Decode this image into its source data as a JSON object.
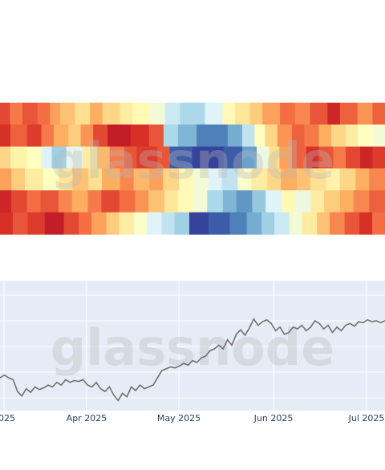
{
  "watermark": "glassnode",
  "chart_data": [
    {
      "type": "heatmap",
      "rows": 6,
      "colorscale": [
        "#313695",
        "#4575b4",
        "#74add1",
        "#abd9e9",
        "#e0f3f8",
        "#ffffbf",
        "#fee090",
        "#fdae61",
        "#f46d43",
        "#d73027",
        "#a50026"
      ],
      "segments": [
        [
          [
            0.86,
            8
          ],
          [
            0.78,
            10
          ],
          [
            0.84,
            12
          ],
          [
            0.8,
            10
          ],
          [
            0.72,
            8
          ],
          [
            0.66,
            12
          ],
          [
            0.6,
            12
          ],
          [
            0.7,
            10
          ],
          [
            0.62,
            14
          ],
          [
            0.56,
            10
          ],
          [
            0.52,
            14
          ],
          [
            0.46,
            12
          ],
          [
            0.36,
            12
          ],
          [
            0.3,
            20
          ],
          [
            0.4,
            14
          ],
          [
            0.52,
            10
          ],
          [
            0.58,
            12
          ],
          [
            0.64,
            10
          ],
          [
            0.72,
            14
          ],
          [
            0.8,
            12
          ],
          [
            0.76,
            12
          ],
          [
            0.84,
            14
          ],
          [
            0.92,
            10
          ],
          [
            0.82,
            14
          ],
          [
            0.74,
            12
          ],
          [
            0.82,
            10
          ]
        ],
        [
          [
            0.9,
            10
          ],
          [
            0.82,
            16
          ],
          [
            0.88,
            14
          ],
          [
            0.78,
            12
          ],
          [
            0.7,
            14
          ],
          [
            0.64,
            12
          ],
          [
            0.74,
            12
          ],
          [
            0.86,
            14
          ],
          [
            0.94,
            22
          ],
          [
            0.9,
            18
          ],
          [
            0.84,
            14
          ],
          [
            0.3,
            14
          ],
          [
            0.22,
            18
          ],
          [
            0.12,
            30
          ],
          [
            0.2,
            14
          ],
          [
            0.34,
            12
          ],
          [
            0.5,
            10
          ],
          [
            0.62,
            12
          ],
          [
            0.74,
            14
          ],
          [
            0.82,
            12
          ],
          [
            0.78,
            14
          ],
          [
            0.7,
            12
          ],
          [
            0.62,
            14
          ],
          [
            0.56,
            12
          ],
          [
            0.5,
            14
          ],
          [
            0.46,
            12
          ]
        ],
        [
          [
            0.62,
            10
          ],
          [
            0.54,
            16
          ],
          [
            0.5,
            14
          ],
          [
            0.4,
            10
          ],
          [
            0.28,
            14
          ],
          [
            0.42,
            16
          ],
          [
            0.56,
            14
          ],
          [
            0.68,
            12
          ],
          [
            0.78,
            14
          ],
          [
            0.84,
            12
          ],
          [
            0.88,
            20
          ],
          [
            0.84,
            12
          ],
          [
            0.06,
            22
          ],
          [
            0.02,
            30
          ],
          [
            0.06,
            18
          ],
          [
            0.18,
            14
          ],
          [
            0.44,
            12
          ],
          [
            0.6,
            10
          ],
          [
            0.72,
            12
          ],
          [
            0.82,
            14
          ],
          [
            0.9,
            12
          ],
          [
            0.84,
            14
          ],
          [
            0.78,
            12
          ],
          [
            0.86,
            14
          ],
          [
            0.92,
            12
          ],
          [
            0.88,
            12
          ]
        ],
        [
          [
            0.72,
            10
          ],
          [
            0.64,
            12
          ],
          [
            0.56,
            16
          ],
          [
            0.5,
            14
          ],
          [
            0.58,
            12
          ],
          [
            0.66,
            14
          ],
          [
            0.6,
            12
          ],
          [
            0.7,
            16
          ],
          [
            0.76,
            12
          ],
          [
            0.68,
            14
          ],
          [
            0.72,
            12
          ],
          [
            0.62,
            14
          ],
          [
            0.52,
            12
          ],
          [
            0.46,
            14
          ],
          [
            0.4,
            12
          ],
          [
            0.34,
            14
          ],
          [
            0.48,
            12
          ],
          [
            0.56,
            14
          ],
          [
            0.62,
            12
          ],
          [
            0.7,
            14
          ],
          [
            0.66,
            12
          ],
          [
            0.6,
            14
          ],
          [
            0.54,
            12
          ],
          [
            0.62,
            14
          ],
          [
            0.7,
            12
          ],
          [
            0.76,
            14
          ]
        ],
        [
          [
            0.92,
            10
          ],
          [
            0.86,
            14
          ],
          [
            0.8,
            12
          ],
          [
            0.84,
            16
          ],
          [
            0.76,
            12
          ],
          [
            0.7,
            14
          ],
          [
            0.78,
            12
          ],
          [
            0.86,
            16
          ],
          [
            0.8,
            14
          ],
          [
            0.74,
            12
          ],
          [
            0.66,
            14
          ],
          [
            0.58,
            12
          ],
          [
            0.52,
            14
          ],
          [
            0.46,
            12
          ],
          [
            0.3,
            14
          ],
          [
            0.22,
            12
          ],
          [
            0.16,
            14
          ],
          [
            0.26,
            12
          ],
          [
            0.4,
            14
          ],
          [
            0.52,
            12
          ],
          [
            0.44,
            14
          ],
          [
            0.56,
            12
          ],
          [
            0.64,
            14
          ],
          [
            0.7,
            12
          ],
          [
            0.76,
            14
          ],
          [
            0.82,
            14
          ]
        ],
        [
          [
            0.9,
            12
          ],
          [
            0.84,
            14
          ],
          [
            0.88,
            16
          ],
          [
            0.94,
            18
          ],
          [
            0.86,
            14
          ],
          [
            0.8,
            12
          ],
          [
            0.72,
            14
          ],
          [
            0.64,
            12
          ],
          [
            0.56,
            14
          ],
          [
            0.48,
            12
          ],
          [
            0.4,
            14
          ],
          [
            0.34,
            12
          ],
          [
            0.28,
            14
          ],
          [
            0.02,
            18
          ],
          [
            0.06,
            20
          ],
          [
            0.12,
            16
          ],
          [
            0.2,
            14
          ],
          [
            0.28,
            12
          ],
          [
            0.36,
            14
          ],
          [
            0.46,
            12
          ],
          [
            0.56,
            14
          ],
          [
            0.66,
            12
          ],
          [
            0.76,
            14
          ],
          [
            0.84,
            14
          ],
          [
            0.9,
            12
          ],
          [
            0.8,
            12
          ]
        ]
      ]
    },
    {
      "type": "line",
      "x_tick_labels": [
        "2025",
        "Apr 2025",
        "May 2025",
        "Jun 2025",
        "Jul 2025"
      ],
      "ylim": [
        0,
        100
      ],
      "series": [
        {
          "values": [
            30,
            33,
            30,
            28,
            15,
            10,
            18,
            14,
            20,
            17,
            19,
            22,
            20,
            25,
            22,
            28,
            25,
            27,
            26,
            28,
            22,
            20,
            25,
            18,
            15,
            20,
            11,
            5,
            13,
            9,
            20,
            16,
            22,
            18,
            20,
            22,
            30,
            38,
            40,
            42,
            41,
            43,
            46,
            44,
            49,
            47,
            52,
            54,
            60,
            62,
            66,
            62,
            72,
            66,
            78,
            83,
            77,
            85,
            95,
            88,
            92,
            94,
            90,
            82,
            86,
            78,
            80,
            86,
            84,
            88,
            82,
            86,
            93,
            90,
            84,
            88,
            80,
            86,
            82,
            88,
            90,
            87,
            92,
            91,
            94,
            92,
            93,
            91,
            93
          ]
        }
      ]
    }
  ]
}
